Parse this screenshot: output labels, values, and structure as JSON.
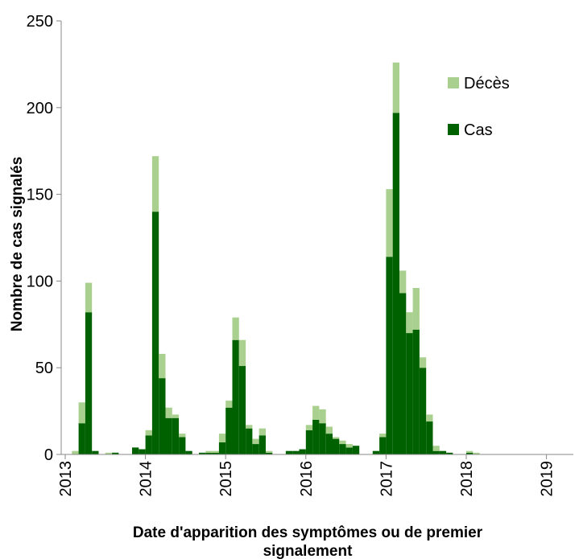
{
  "chart_data": {
    "type": "bar",
    "stacked": true,
    "title": "",
    "xlabel": "Date d'apparition des symptômes ou de premier signalement",
    "ylabel": "Nombre de cas signalés",
    "ylim": [
      0,
      250
    ],
    "yticks": [
      0,
      50,
      100,
      150,
      200,
      250
    ],
    "x_period_start": 2013,
    "periods_per_year": 12,
    "x_tick_labels": [
      "2013",
      "2014",
      "2015",
      "2016",
      "2017",
      "2018",
      "2019"
    ],
    "legend_position": "top-right",
    "grid": false,
    "series": [
      {
        "name": "Cas",
        "color": "#006100",
        "values": [
          0,
          0,
          18,
          82,
          2,
          0,
          0,
          1,
          0,
          0,
          4,
          3,
          11,
          140,
          44,
          21,
          21,
          10,
          2,
          0,
          1,
          1,
          1,
          7,
          27,
          66,
          51,
          15,
          6,
          11,
          1,
          0,
          0,
          2,
          2,
          3,
          14,
          20,
          18,
          12,
          9,
          6,
          4,
          5,
          0,
          0,
          2,
          10,
          114,
          197,
          93,
          70,
          72,
          50,
          19,
          2,
          2,
          1,
          0,
          0,
          1,
          0,
          0,
          0,
          0,
          0,
          0,
          0,
          0,
          0,
          0,
          0,
          0,
          0,
          0,
          0,
          0,
          0,
          0,
          0,
          0,
          0,
          0,
          0,
          1,
          0
        ]
      },
      {
        "name": "Décès",
        "color": "#a9d08e",
        "values": [
          0,
          2,
          12,
          17,
          0,
          0,
          1,
          0,
          0,
          0,
          0,
          0,
          3,
          32,
          14,
          6,
          2,
          2,
          0,
          0,
          0,
          1,
          1,
          5,
          4,
          13,
          15,
          2,
          3,
          4,
          1,
          0,
          0,
          0,
          0,
          0,
          3,
          8,
          8,
          4,
          1,
          2,
          2,
          0,
          0,
          0,
          0,
          2,
          39,
          29,
          13,
          12,
          24,
          6,
          4,
          3,
          0,
          0,
          0,
          0,
          1,
          1,
          0,
          0,
          0,
          0,
          0,
          0,
          0,
          0,
          0,
          0,
          0,
          0,
          0,
          0,
          0,
          0,
          0,
          0,
          0,
          0,
          0,
          0,
          0,
          0
        ]
      }
    ]
  }
}
